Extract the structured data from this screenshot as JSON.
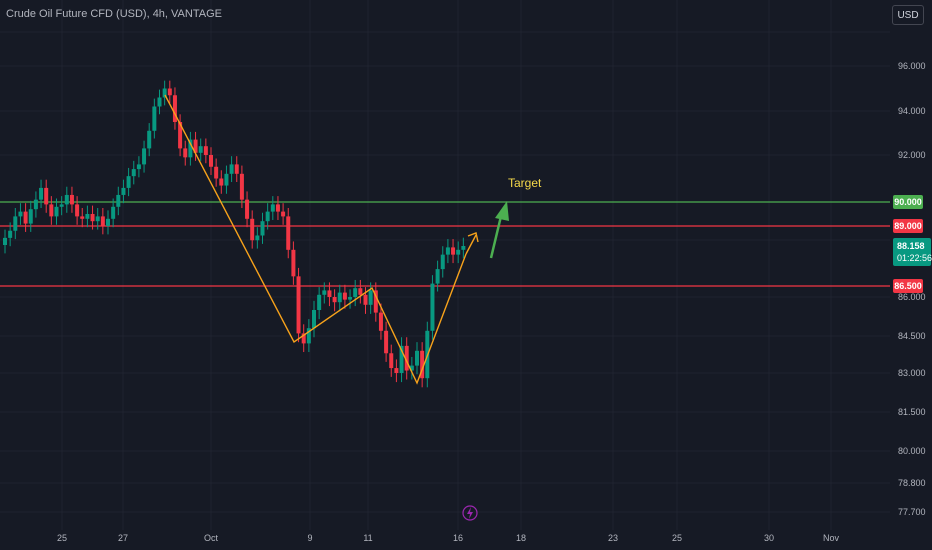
{
  "header": {
    "title": "Crude Oil Future CFD (USD), 4h, VANTAGE",
    "currency_button": "USD"
  },
  "price_axis": {
    "tick_labels": [
      "96.000",
      "94.000",
      "92.000",
      "86.000",
      "84.500",
      "83.000",
      "81.500",
      "80.000",
      "78.800",
      "77.700"
    ]
  },
  "time_axis": {
    "tick_labels": [
      "25",
      "27",
      "Oct",
      "9",
      "11",
      "16",
      "18",
      "23",
      "25",
      "30",
      "Nov"
    ]
  },
  "levels": [
    {
      "price": 90.0,
      "label": "90.000",
      "color": "#4caf50"
    },
    {
      "price": 89.0,
      "label": "89.000",
      "color": "#f23645"
    },
    {
      "price": 86.5,
      "label": "86.500",
      "color": "#f23645"
    }
  ],
  "current_price": {
    "label": "88.158",
    "countdown": "01:22:56",
    "color": "#089981"
  },
  "annotation": {
    "target_text": "Target",
    "pattern_color": "#f7a21b",
    "arrow_color": "#4caf50"
  },
  "colors": {
    "up": "#089981",
    "down": "#f23645",
    "background": "#161a25"
  },
  "chart_data": {
    "type": "candlestick",
    "title": "Crude Oil Future CFD (USD), 4h, VANTAGE",
    "ohlc_close_approx": [
      88.5,
      88.8,
      89.4,
      89.6,
      89.1,
      89.7,
      90.1,
      90.6,
      89.9,
      89.4,
      89.8,
      89.9,
      90.3,
      89.9,
      89.4,
      89.3,
      89.5,
      89.2,
      89.4,
      89.0,
      89.3,
      89.8,
      90.3,
      90.6,
      91.1,
      91.4,
      91.6,
      92.3,
      93.1,
      94.2,
      94.6,
      95.0,
      94.7,
      93.5,
      92.3,
      91.9,
      92.7,
      92.1,
      92.4,
      92.0,
      91.5,
      91.0,
      90.7,
      91.2,
      91.6,
      91.2,
      90.1,
      89.3,
      88.4,
      88.6,
      89.2,
      89.6,
      89.9,
      89.6,
      89.4,
      88.0,
      86.9,
      84.6,
      84.2,
      84.8,
      85.5,
      86.1,
      86.3,
      86.0,
      85.8,
      86.2,
      85.9,
      86.0,
      86.4,
      86.1,
      85.7,
      86.3,
      85.4,
      84.7,
      83.8,
      83.2,
      83.0,
      84.1,
      83.1,
      83.3,
      83.9,
      82.8,
      84.7,
      86.6,
      87.2,
      87.8,
      88.1,
      87.8,
      88.0,
      88.158
    ],
    "pattern_points": [
      [
        94.6
      ],
      [
        84.3
      ],
      [
        86.7
      ],
      [
        82.8
      ],
      [
        88.9
      ]
    ],
    "levels": [
      90.0,
      89.0,
      86.5
    ],
    "current_price": 88.158
  }
}
